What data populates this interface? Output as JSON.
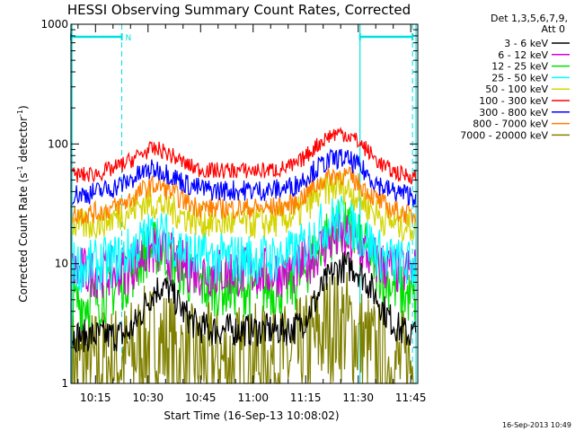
{
  "chart_data": {
    "type": "line",
    "title": "HESSI Observing Summary Count Rates, Corrected",
    "xlabel": "Start Time (16-Sep-13 10:08:02)",
    "ylabel_main": "Corrected Count Rate (s",
    "ylabel_sup1": "-1",
    "ylabel_mid": " detector",
    "ylabel_sup2": "-1",
    "ylabel_end": ")",
    "y_scale": "log",
    "ylim": [
      1,
      1000
    ],
    "xlim_minutes": [
      608,
      707
    ],
    "y_ticks": [
      {
        "value": 1,
        "label": "1"
      },
      {
        "value": 10,
        "label": "10"
      },
      {
        "value": 100,
        "label": "100"
      },
      {
        "value": 1000,
        "label": "1000"
      }
    ],
    "x_ticks": [
      {
        "value": 615,
        "label": "10:15"
      },
      {
        "value": 630,
        "label": "10:30"
      },
      {
        "value": 645,
        "label": "10:45"
      },
      {
        "value": 660,
        "label": "11:00"
      },
      {
        "value": 675,
        "label": "11:15"
      },
      {
        "value": 690,
        "label": "11:30"
      },
      {
        "value": 705,
        "label": "11:45"
      }
    ],
    "legend_header": [
      "Det 1,3,5,6,7,9,",
      "Att 0"
    ],
    "legend_position": "right",
    "series": [
      {
        "name": "3 - 6 keV",
        "color": "#000000",
        "x": [
          608,
          612,
          616,
          620,
          624,
          626,
          628,
          630,
          632,
          634,
          636,
          638,
          640,
          642,
          644,
          648,
          652,
          656,
          660,
          664,
          668,
          672,
          674,
          676,
          678,
          680,
          682,
          684,
          686,
          688,
          690,
          692,
          694,
          696,
          698,
          700,
          702,
          704,
          706
        ],
        "y": [
          2.5,
          2.5,
          2.5,
          2.5,
          2.6,
          3.0,
          3.8,
          5.0,
          6.0,
          6.5,
          6.0,
          5.0,
          4.0,
          3.4,
          3.0,
          2.8,
          2.8,
          2.8,
          2.8,
          2.8,
          2.8,
          2.9,
          3.2,
          4.0,
          5.0,
          6.5,
          7.8,
          9.0,
          9.5,
          9.5,
          8.8,
          7.5,
          6.0,
          4.8,
          3.8,
          3.2,
          2.8,
          2.6,
          2.6
        ]
      },
      {
        "name": "6 - 12 keV",
        "color": "#d400d4",
        "x": [
          608,
          612,
          616,
          620,
          624,
          626,
          628,
          630,
          632,
          634,
          636,
          638,
          640,
          642,
          644,
          648,
          652,
          656,
          660,
          664,
          668,
          672,
          674,
          676,
          678,
          680,
          682,
          684,
          686,
          688,
          690,
          692,
          694,
          696,
          698,
          700,
          702,
          704,
          706
        ],
        "y": [
          8.5,
          8.5,
          8.5,
          8.6,
          9.0,
          10.0,
          11.5,
          12.5,
          13.0,
          12.5,
          11.5,
          10.5,
          9.8,
          9.2,
          8.8,
          8.5,
          8.5,
          8.5,
          8.5,
          8.5,
          8.6,
          8.8,
          9.5,
          11.0,
          12.5,
          14.0,
          15.5,
          16.5,
          16.0,
          15.0,
          14.0,
          12.5,
          11.0,
          10.0,
          9.5,
          9.0,
          8.8,
          8.6,
          8.5
        ]
      },
      {
        "name": "12 - 25 keV",
        "color": "#00e000",
        "x": [
          608,
          612,
          616,
          620,
          624,
          626,
          628,
          630,
          632,
          634,
          636,
          638,
          640,
          642,
          644,
          648,
          652,
          656,
          660,
          664,
          668,
          672,
          674,
          676,
          678,
          680,
          682,
          684,
          686,
          688,
          690,
          692,
          694,
          696,
          698,
          700,
          702,
          704,
          706
        ],
        "y": [
          4.8,
          4.8,
          5.2,
          6.0,
          7.5,
          9.0,
          11.0,
          13.0,
          13.5,
          13.0,
          11.5,
          10.0,
          8.5,
          7.5,
          6.8,
          6.3,
          6.2,
          6.2,
          6.2,
          6.2,
          6.3,
          6.8,
          8.0,
          10.0,
          12.5,
          15.5,
          18.0,
          20.0,
          19.5,
          18.0,
          15.5,
          13.0,
          10.5,
          8.8,
          7.5,
          6.5,
          5.8,
          5.3,
          5.0
        ]
      },
      {
        "name": "25 - 50 keV",
        "color": "#00ffff",
        "x": [
          608,
          612,
          616,
          620,
          624,
          626,
          628,
          630,
          632,
          634,
          636,
          638,
          640,
          642,
          644,
          648,
          652,
          656,
          660,
          664,
          668,
          672,
          674,
          676,
          678,
          680,
          682,
          684,
          686,
          688,
          690,
          692,
          694,
          696,
          698,
          700,
          702,
          704,
          706
        ],
        "y": [
          9.5,
          9.5,
          9.8,
          10.5,
          12.0,
          13.5,
          15.0,
          16.5,
          17.5,
          17.0,
          16.0,
          14.5,
          13.0,
          12.0,
          11.5,
          11.0,
          11.0,
          11.0,
          11.0,
          11.0,
          11.2,
          12.0,
          13.5,
          15.5,
          18.0,
          20.5,
          22.5,
          23.5,
          23.0,
          21.5,
          19.0,
          16.5,
          14.0,
          12.0,
          11.0,
          10.5,
          10.0,
          9.8,
          9.5
        ]
      },
      {
        "name": "50 - 100 keV",
        "color": "#d4d400",
        "x": [
          608,
          612,
          616,
          620,
          624,
          626,
          628,
          630,
          632,
          634,
          636,
          638,
          640,
          642,
          644,
          648,
          652,
          656,
          660,
          664,
          668,
          672,
          674,
          676,
          678,
          680,
          682,
          684,
          686,
          688,
          690,
          692,
          694,
          696,
          698,
          700,
          702,
          704,
          706
        ],
        "y": [
          21,
          21,
          22,
          24,
          27,
          29,
          31,
          32,
          32,
          31,
          29,
          27,
          25,
          24,
          23,
          22,
          22,
          22,
          22,
          22,
          23,
          25,
          28,
          32,
          36,
          40,
          43,
          44,
          43,
          40,
          36,
          32,
          28,
          25,
          23,
          22,
          21,
          21,
          20
        ]
      },
      {
        "name": "100 - 300 keV",
        "color": "#ff0000",
        "x": [
          608,
          612,
          616,
          620,
          624,
          626,
          628,
          630,
          632,
          634,
          636,
          638,
          640,
          642,
          644,
          648,
          652,
          656,
          660,
          664,
          668,
          672,
          674,
          676,
          678,
          680,
          682,
          684,
          686,
          688,
          690,
          692,
          694,
          696,
          698,
          700,
          702,
          704,
          706
        ],
        "y": [
          55,
          55,
          57,
          62,
          70,
          76,
          82,
          88,
          90,
          88,
          82,
          76,
          70,
          65,
          62,
          60,
          60,
          60,
          60,
          60,
          62,
          66,
          74,
          84,
          96,
          108,
          118,
          124,
          122,
          115,
          104,
          92,
          80,
          70,
          63,
          59,
          56,
          55,
          54
        ]
      },
      {
        "name": "300 - 800 keV",
        "color": "#0000ff",
        "x": [
          608,
          612,
          616,
          620,
          624,
          626,
          628,
          630,
          632,
          634,
          636,
          638,
          640,
          642,
          644,
          648,
          652,
          656,
          660,
          664,
          668,
          672,
          674,
          676,
          678,
          680,
          682,
          684,
          686,
          688,
          690,
          692,
          694,
          696,
          698,
          700,
          702,
          704,
          706
        ],
        "y": [
          38,
          38,
          40,
          43,
          48,
          52,
          56,
          60,
          61,
          60,
          56,
          52,
          48,
          45,
          43,
          41,
          41,
          41,
          41,
          41,
          42,
          45,
          50,
          56,
          62,
          68,
          73,
          76,
          75,
          71,
          65,
          58,
          51,
          46,
          42,
          40,
          39,
          38,
          37
        ]
      },
      {
        "name": "800 - 7000 keV",
        "color": "#ff8000",
        "x": [
          608,
          612,
          616,
          620,
          624,
          626,
          628,
          630,
          632,
          634,
          636,
          638,
          640,
          642,
          644,
          648,
          652,
          656,
          660,
          664,
          668,
          672,
          674,
          676,
          678,
          680,
          682,
          684,
          686,
          688,
          690,
          692,
          694,
          696,
          698,
          700,
          702,
          704,
          706
        ],
        "y": [
          26,
          26,
          27,
          29,
          33,
          36,
          40,
          44,
          45,
          44,
          41,
          37,
          34,
          32,
          30,
          29,
          29,
          29,
          29,
          29,
          30,
          32,
          36,
          40,
          45,
          50,
          54,
          56,
          55,
          52,
          47,
          42,
          37,
          33,
          30,
          28,
          27,
          26,
          25
        ]
      },
      {
        "name": "7000 - 20000 keV",
        "color": "#808000",
        "x": [
          608,
          612,
          616,
          620,
          624,
          626,
          628,
          630,
          632,
          634,
          636,
          638,
          640,
          642,
          644,
          648,
          652,
          656,
          660,
          664,
          668,
          672,
          674,
          676,
          678,
          680,
          682,
          684,
          686,
          688,
          690,
          692,
          694,
          696,
          698,
          700,
          702,
          704,
          706
        ],
        "y": [
          1.4,
          1.4,
          1.4,
          1.5,
          1.6,
          1.8,
          2.0,
          2.2,
          2.3,
          2.2,
          2.0,
          1.8,
          1.6,
          1.5,
          1.5,
          1.5,
          1.5,
          1.5,
          1.5,
          1.5,
          1.5,
          1.6,
          1.8,
          2.0,
          2.3,
          2.7,
          3.0,
          3.2,
          3.1,
          2.8,
          2.4,
          2.0,
          1.8,
          1.6,
          1.5,
          1.4,
          1.4,
          1.4,
          1.4
        ]
      }
    ],
    "intervals": {
      "color": "#00e0e0",
      "night_label": "N",
      "night_spans": [
        [
          608,
          622.5
        ],
        [
          690.5,
          705.5
        ]
      ],
      "saa_lines": [
        622.5,
        705.5
      ],
      "orbit_lines": [
        608.3,
        690.5,
        706.5
      ]
    },
    "timestamp": "16-Sep-2013 10:49"
  }
}
